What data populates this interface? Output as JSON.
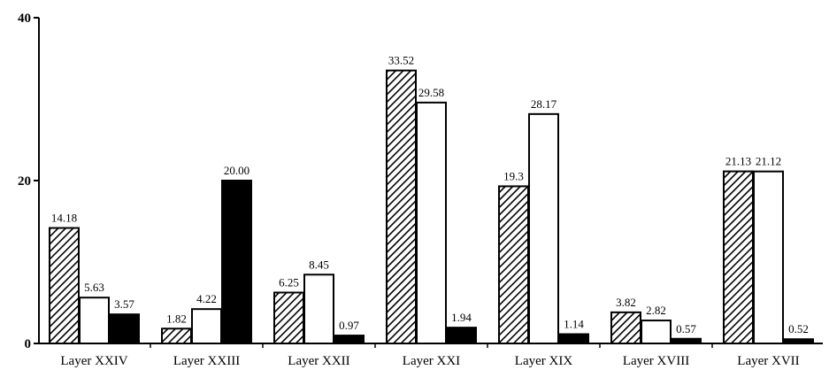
{
  "chart_data": {
    "type": "bar",
    "title": "",
    "xlabel": "",
    "ylabel": "",
    "ylim": [
      0,
      40
    ],
    "yticks": [
      "0",
      "20",
      "40"
    ],
    "grid": false,
    "legend": "none",
    "categories": [
      "Layer XXIV",
      "Layer XXIII",
      "Layer XXII",
      "Layer XXI",
      "Layer XIX",
      "Layer XVIII",
      "Layer XVII"
    ],
    "series": [
      {
        "pattern": "hatched",
        "color": "#000000",
        "values": [
          14.18,
          1.82,
          6.25,
          33.52,
          19.3,
          3.82,
          21.13
        ],
        "labels": [
          "14.18",
          "1.82",
          "6.25",
          "33.52",
          "19.3",
          "3.82",
          "21.13"
        ]
      },
      {
        "pattern": "white",
        "color": "#ffffff",
        "values": [
          5.63,
          4.22,
          8.45,
          29.58,
          28.17,
          2.82,
          21.12
        ],
        "labels": [
          "5.63",
          "4.22",
          "8.45",
          "29.58",
          "28.17",
          "2.82",
          "21.12"
        ]
      },
      {
        "pattern": "black",
        "color": "#000000",
        "values": [
          3.57,
          20.0,
          0.97,
          1.94,
          1.14,
          0.57,
          0.52
        ],
        "labels": [
          "3.57",
          "20.00",
          "0.97",
          "1.94",
          "1.14",
          "0.57",
          "0.52"
        ]
      }
    ]
  }
}
